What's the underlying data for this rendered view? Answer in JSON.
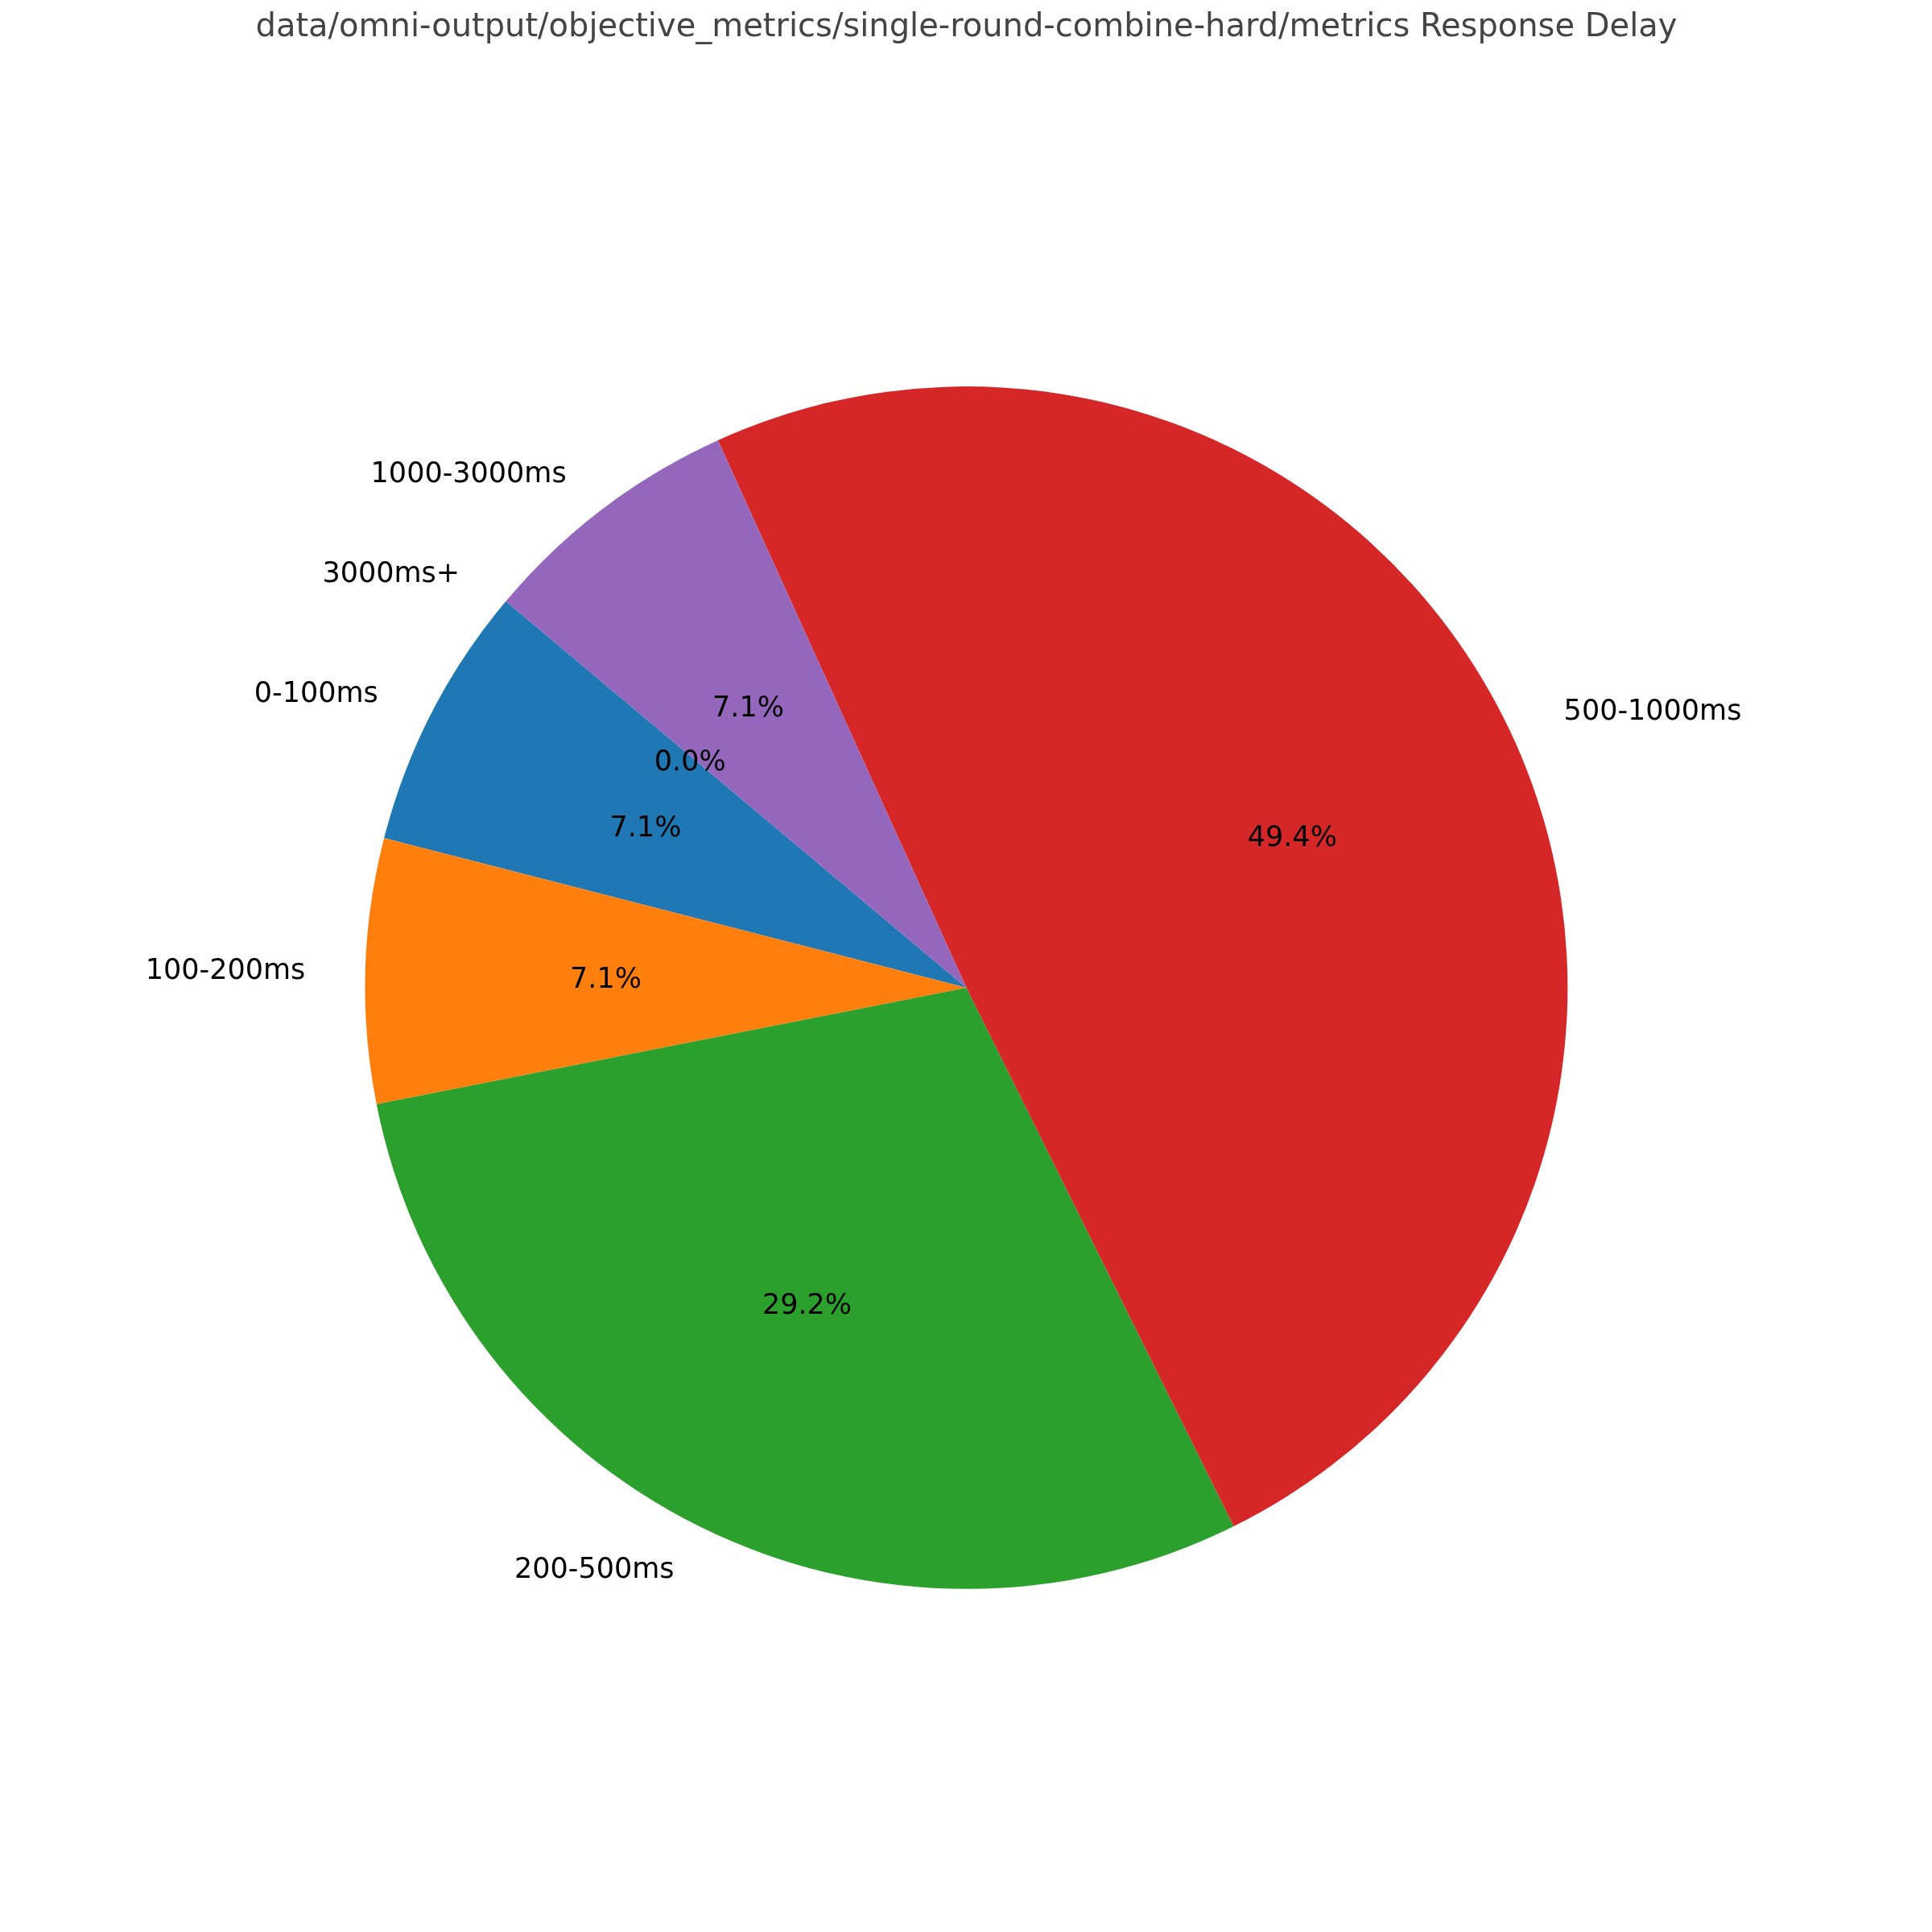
{
  "chart_data": {
    "type": "pie",
    "title": "data/omni-output/objective_metrics/single-round-combine-hard/metrics Response Delay",
    "categories": [
      "0-100ms",
      "100-200ms",
      "200-500ms",
      "500-1000ms",
      "1000-3000ms",
      "3000ms+"
    ],
    "values": [
      7.1,
      7.1,
      29.2,
      49.4,
      7.1,
      0.0
    ],
    "colors": [
      "#1f77b4",
      "#ff7f0e",
      "#2ca02c",
      "#d62728",
      "#9467bd",
      "#8c564b"
    ],
    "value_labels": [
      "7.1%",
      "7.1%",
      "29.2%",
      "49.4%",
      "7.1%",
      "0.0%"
    ]
  }
}
